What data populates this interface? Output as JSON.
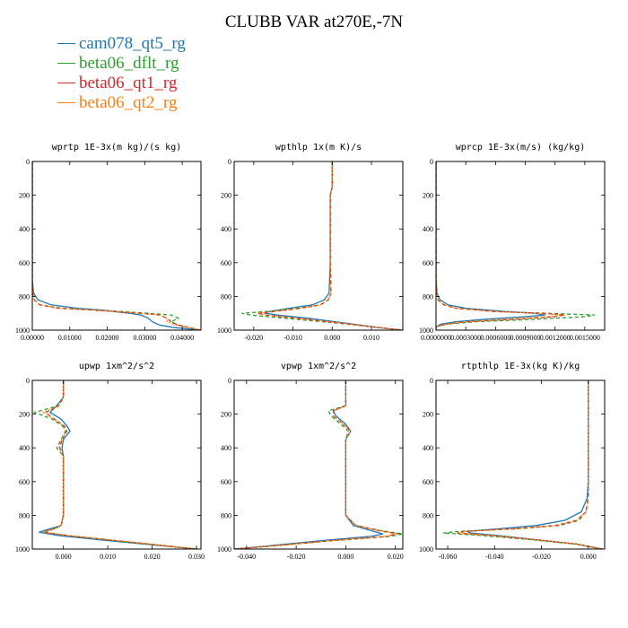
{
  "title": "CLUBB VAR at270E,-7N",
  "legend": [
    {
      "name": "cam078_qt5_rg",
      "color": "#1f77b4"
    },
    {
      "name": "beta06_dflt_rg",
      "color": "#2ca02c"
    },
    {
      "name": "beta06_qt1_rg",
      "color": "#d62728"
    },
    {
      "name": "beta06_qt2_rg",
      "color": "#ff7f0e"
    }
  ],
  "chart_data": [
    {
      "type": "line",
      "title": "wprtp  1E-3x(m kg)/(s kg)",
      "xlim": [
        0,
        0.045
      ],
      "ylim": [
        1000,
        0
      ],
      "xticks": [
        0,
        0.01,
        0.02,
        0.03,
        0.04
      ],
      "xtick_labels": [
        "0.00000",
        "0.01000",
        "0.02000",
        "0.03000",
        "0.04000"
      ],
      "yticks": [
        0,
        200,
        400,
        600,
        800,
        1000
      ],
      "y": [
        0,
        700,
        780,
        820,
        850,
        870,
        880,
        890,
        900,
        910,
        930,
        950,
        970,
        985,
        1000
      ],
      "series": [
        {
          "values": [
            0,
            0,
            0.0003,
            0.0015,
            0.005,
            0.012,
            0.018,
            0.022,
            0.026,
            0.029,
            0.031,
            0.032,
            0.034,
            0.038,
            0.045
          ]
        },
        {
          "values": [
            0,
            0,
            0.0001,
            0.0005,
            0.002,
            0.008,
            0.016,
            0.024,
            0.031,
            0.037,
            0.039,
            0.037,
            0.039,
            0.042,
            0.045
          ]
        },
        {
          "values": [
            0,
            0,
            0.0001,
            0.0005,
            0.002,
            0.007,
            0.015,
            0.022,
            0.029,
            0.034,
            0.036,
            0.037,
            0.039,
            0.042,
            0.045
          ]
        },
        {
          "values": [
            0,
            0,
            0.0001,
            0.0005,
            0.002,
            0.007,
            0.015,
            0.022,
            0.029,
            0.034,
            0.036,
            0.036,
            0.038,
            0.042,
            0.045
          ]
        }
      ]
    },
    {
      "type": "line",
      "title": "wpthlp  1x(m K)/s",
      "xlim": [
        -0.025,
        0.018
      ],
      "ylim": [
        1000,
        0
      ],
      "xticks": [
        -0.02,
        -0.01,
        0,
        0.01
      ],
      "xtick_labels": [
        "-0.020",
        "-0.010",
        "0.000",
        "0.010"
      ],
      "yticks": [
        0,
        200,
        400,
        600,
        800,
        1000
      ],
      "y": [
        0,
        150,
        200,
        600,
        780,
        820,
        850,
        870,
        890,
        900,
        910,
        930,
        960,
        985,
        1000
      ],
      "series": [
        {
          "values": [
            0,
            0,
            -0.0005,
            -0.0005,
            -0.0008,
            -0.002,
            -0.005,
            -0.011,
            -0.016,
            -0.017,
            -0.014,
            -0.006,
            0.004,
            0.012,
            0.018
          ]
        },
        {
          "values": [
            0,
            0,
            -0.0005,
            -0.0005,
            -0.0003,
            -0.001,
            -0.003,
            -0.009,
            -0.017,
            -0.023,
            -0.021,
            -0.012,
            0.002,
            0.012,
            0.018
          ]
        },
        {
          "values": [
            0,
            0,
            -0.0005,
            -0.0005,
            -0.0003,
            -0.001,
            -0.003,
            -0.008,
            -0.015,
            -0.019,
            -0.017,
            -0.009,
            0.003,
            0.012,
            0.018
          ]
        },
        {
          "values": [
            0,
            0,
            -0.0005,
            -0.0005,
            -0.0003,
            -0.001,
            -0.003,
            -0.008,
            -0.015,
            -0.019,
            -0.017,
            -0.009,
            0.003,
            0.012,
            0.018
          ]
        }
      ]
    },
    {
      "type": "line",
      "title": "wprcp  1E-3x(m/s) (kg/kg)",
      "xlim": [
        0,
        0.0017
      ],
      "ylim": [
        1000,
        0
      ],
      "xticks": [
        0,
        0.0003,
        0.0006,
        0.0009,
        0.0012,
        0.0015
      ],
      "xtick_labels": [
        "0.0000000",
        "0.0003000",
        "0.0006000",
        "0.0009000",
        "0.0012000",
        "0.0015000"
      ],
      "yticks": [
        0,
        200,
        400,
        600,
        800,
        1000
      ],
      "y": [
        0,
        700,
        780,
        820,
        850,
        870,
        890,
        900,
        910,
        920,
        935,
        950,
        965,
        980,
        1000
      ],
      "series": [
        {
          "values": [
            0,
            0,
            1e-05,
            4e-05,
            0.00012,
            0.0003,
            0.0007,
            0.001,
            0.0011,
            0.0009,
            0.0005,
            0.0002,
            5e-05,
            0,
            0
          ]
        },
        {
          "values": [
            0,
            0,
            1e-05,
            2e-05,
            8e-05,
            0.0002,
            0.0006,
            0.0011,
            0.0016,
            0.0015,
            0.001,
            0.0004,
            0.0001,
            0,
            0
          ]
        },
        {
          "values": [
            0,
            0,
            1e-05,
            2e-05,
            8e-05,
            0.0002,
            0.0006,
            0.0011,
            0.0013,
            0.0012,
            0.0008,
            0.0003,
            0.0001,
            0,
            0
          ]
        },
        {
          "values": [
            0,
            0,
            1e-05,
            2e-05,
            8e-05,
            0.0002,
            0.0006,
            0.001,
            0.0013,
            0.0011,
            0.0007,
            0.0003,
            0.0001,
            0,
            0
          ]
        }
      ]
    },
    {
      "type": "line",
      "title": "upwp  1xm^2/s^2",
      "xlim": [
        -0.007,
        0.031
      ],
      "ylim": [
        1000,
        0
      ],
      "xticks": [
        0,
        0.01,
        0.02,
        0.03
      ],
      "xtick_labels": [
        "0.000",
        "0.010",
        "0.020",
        "0.030"
      ],
      "yticks": [
        0,
        200,
        400,
        600,
        800,
        1000
      ],
      "y": [
        0,
        100,
        150,
        190,
        230,
        270,
        300,
        350,
        400,
        450,
        800,
        860,
        880,
        900,
        920,
        950,
        1000
      ],
      "series": [
        {
          "values": [
            0,
            0,
            -0.0015,
            -0.003,
            -0.0005,
            0.0008,
            0.0015,
            0,
            -0.0003,
            0,
            0,
            -0.0005,
            -0.003,
            -0.0055,
            -0.001,
            0.01,
            0.03
          ]
        },
        {
          "values": [
            0,
            0,
            -0.001,
            -0.0065,
            -0.0025,
            -0.0002,
            0.0005,
            -0.0005,
            -0.0015,
            0,
            0,
            -0.0005,
            -0.002,
            -0.0045,
            0.001,
            0.012,
            0.03
          ]
        },
        {
          "values": [
            0,
            0,
            -0.001,
            -0.004,
            -0.002,
            0.0002,
            0.0008,
            -0.0003,
            -0.0008,
            0,
            0,
            -0.0005,
            -0.002,
            -0.0045,
            0.001,
            0.012,
            0.03
          ]
        },
        {
          "values": [
            0,
            0,
            -0.001,
            -0.0045,
            -0.002,
            0,
            0.0006,
            -0.0004,
            -0.001,
            0,
            0,
            -0.0005,
            -0.002,
            -0.0045,
            0.001,
            0.012,
            0.03
          ]
        }
      ]
    },
    {
      "type": "line",
      "title": "vpwp  1xm^2/s^2",
      "xlim": [
        -0.045,
        0.023
      ],
      "ylim": [
        1000,
        0
      ],
      "xticks": [
        -0.04,
        -0.02,
        0,
        0.02
      ],
      "xtick_labels": [
        "-0.040",
        "-0.020",
        "0.000",
        "0.020"
      ],
      "yticks": [
        0,
        200,
        400,
        600,
        800,
        1000
      ],
      "y": [
        0,
        150,
        180,
        210,
        260,
        300,
        350,
        800,
        860,
        890,
        910,
        925,
        950,
        980,
        1000
      ],
      "series": [
        {
          "values": [
            0,
            0,
            -0.005,
            -0.004,
            0,
            0.002,
            0,
            0,
            0.003,
            0.01,
            0.015,
            0.01,
            -0.01,
            -0.03,
            -0.045
          ]
        },
        {
          "values": [
            0,
            0,
            -0.007,
            -0.006,
            -0.002,
            0.001,
            0,
            0,
            0.004,
            0.014,
            0.023,
            0.018,
            -0.005,
            -0.028,
            -0.045
          ]
        },
        {
          "values": [
            0,
            0,
            -0.005,
            -0.005,
            -0.001,
            0.002,
            0,
            0,
            0.004,
            0.013,
            0.021,
            0.016,
            -0.006,
            -0.028,
            -0.045
          ]
        },
        {
          "values": [
            0,
            0,
            -0.005,
            -0.005,
            -0.001,
            0.002,
            0,
            0,
            0.004,
            0.013,
            0.02,
            0.016,
            -0.006,
            -0.028,
            -0.045
          ]
        }
      ]
    },
    {
      "type": "line",
      "title": "rtpthlp  1E-3x(kg K)/kg",
      "xlim": [
        -0.065,
        0.007
      ],
      "ylim": [
        1000,
        0
      ],
      "xticks": [
        -0.06,
        -0.04,
        -0.02,
        0
      ],
      "xtick_labels": [
        "-0.060",
        "-0.040",
        "-0.020",
        "0.000"
      ],
      "yticks": [
        0,
        200,
        400,
        600,
        800,
        1000
      ],
      "y": [
        0,
        600,
        700,
        780,
        830,
        860,
        880,
        895,
        905,
        920,
        945,
        970,
        1000
      ],
      "series": [
        {
          "values": [
            0,
            0,
            -0.0005,
            -0.003,
            -0.01,
            -0.022,
            -0.038,
            -0.052,
            -0.05,
            -0.038,
            -0.022,
            -0.005,
            0.006
          ]
        },
        {
          "values": [
            0,
            0,
            0,
            -0.001,
            -0.004,
            -0.012,
            -0.03,
            -0.055,
            -0.062,
            -0.045,
            -0.024,
            -0.006,
            0.006
          ]
        },
        {
          "values": [
            0,
            0,
            0,
            -0.001,
            -0.005,
            -0.014,
            -0.032,
            -0.053,
            -0.056,
            -0.041,
            -0.022,
            -0.005,
            0.006
          ]
        },
        {
          "values": [
            0,
            0,
            0,
            -0.001,
            -0.005,
            -0.013,
            -0.031,
            -0.052,
            -0.055,
            -0.04,
            -0.022,
            -0.005,
            0.006
          ]
        }
      ]
    }
  ]
}
